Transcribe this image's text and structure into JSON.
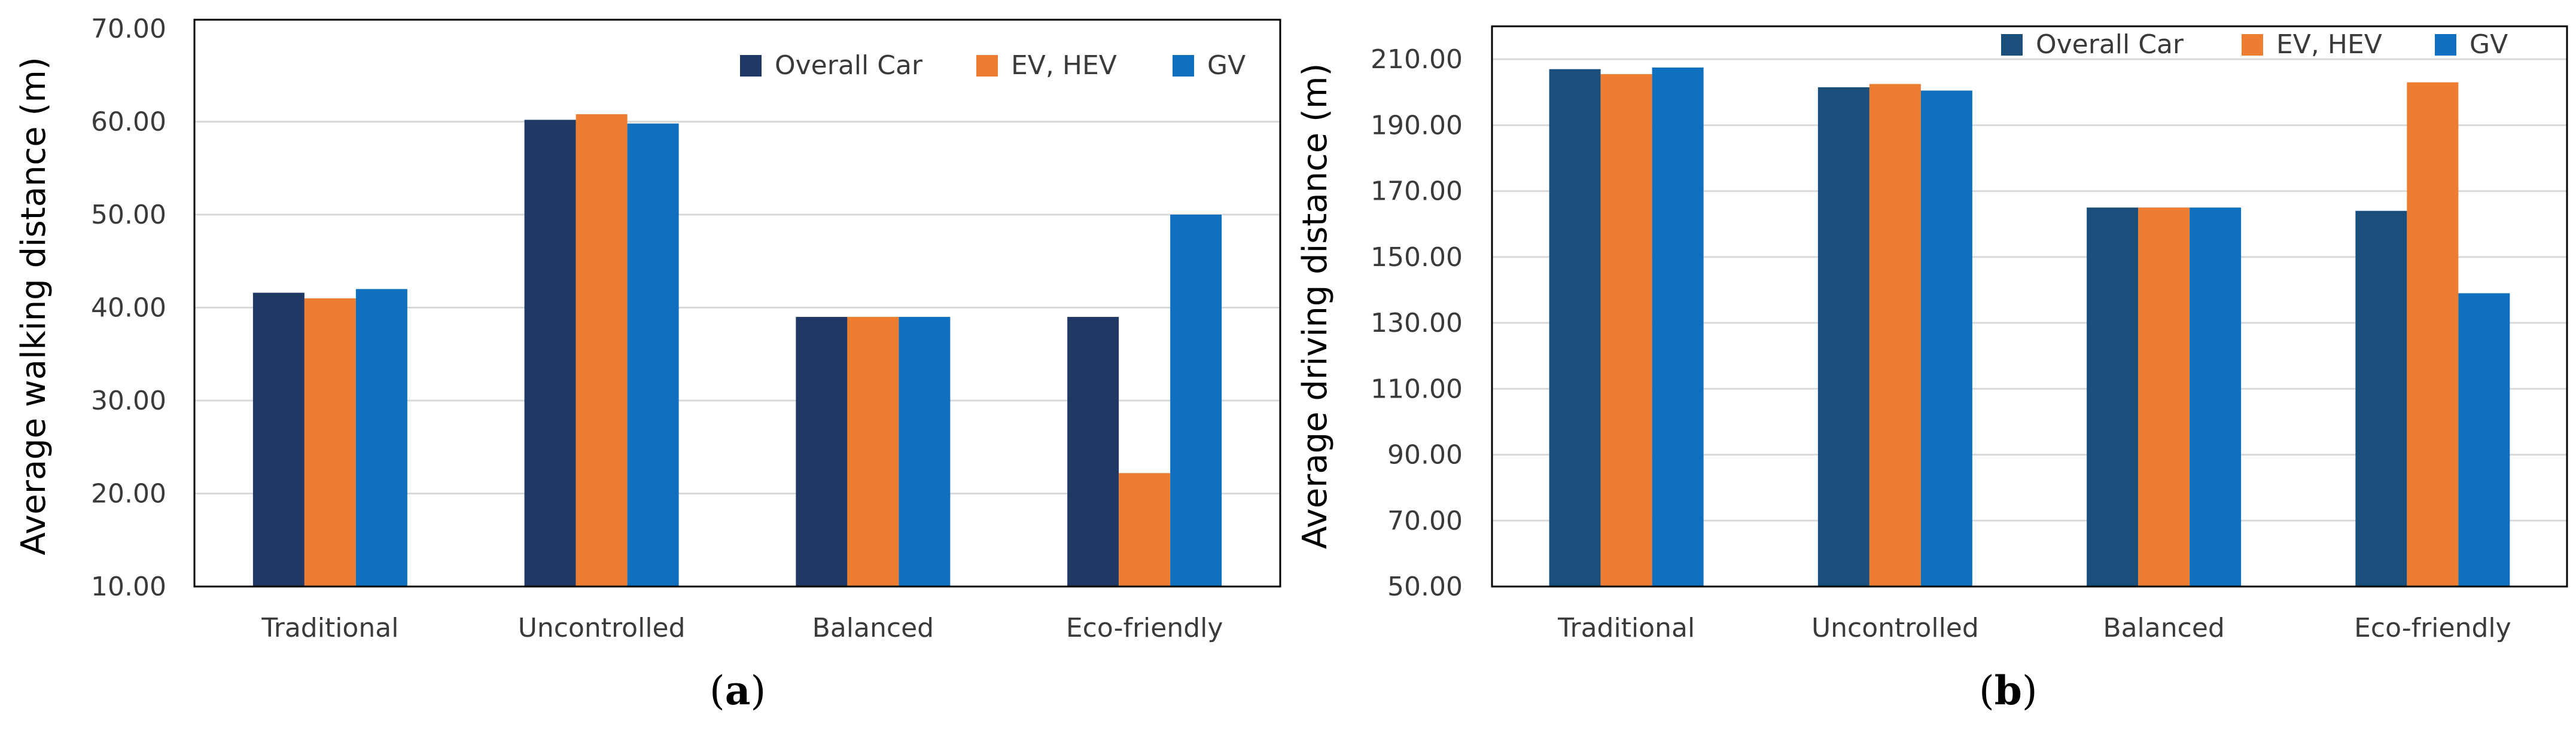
{
  "colors": {
    "panel_a": [
      "#1f3864",
      "#ed7d31",
      "#1070c0"
    ],
    "panel_b": [
      "#1a4f7c",
      "#ed7d31",
      "#1070c0"
    ],
    "gridline": "#d9d9d9",
    "frame": "#000000"
  },
  "chart_data": [
    {
      "type": "bar",
      "panel_label": "a",
      "caption_open": "(",
      "caption_close": ")",
      "title": "",
      "ylabel": "Average walking distance (m)",
      "xlabel": "",
      "ylim": [
        10,
        70
      ],
      "yticks": [
        10,
        20,
        30,
        40,
        50,
        60,
        70
      ],
      "ytick_labels": [
        "10.00",
        "20.00",
        "30.00",
        "40.00",
        "50.00",
        "60.00",
        "70.00"
      ],
      "categories": [
        "Traditional",
        "Uncontrolled",
        "Balanced",
        "Eco-friendly"
      ],
      "legend_position": "top-right",
      "grid": true,
      "series": [
        {
          "name": "Overall Car",
          "values": [
            41.6,
            60.2,
            39.0,
            39.0
          ]
        },
        {
          "name": "EV, HEV",
          "values": [
            41.0,
            60.8,
            39.0,
            22.2
          ]
        },
        {
          "name": "GV",
          "values": [
            42.0,
            59.8,
            39.0,
            50.0
          ]
        }
      ]
    },
    {
      "type": "bar",
      "panel_label": "b",
      "caption_open": "(",
      "caption_close": ")",
      "title": "",
      "ylabel": "Average driving distance (m)",
      "xlabel": "",
      "ylim": [
        50,
        220
      ],
      "yticks": [
        50,
        70,
        90,
        110,
        130,
        150,
        170,
        190,
        210
      ],
      "ytick_labels": [
        "50.00",
        "70.00",
        "90.00",
        "110.00",
        "130.00",
        "150.00",
        "170.00",
        "190.00",
        "210.00"
      ],
      "categories": [
        "Traditional",
        "Uncontrolled",
        "Balanced",
        "Eco-friendly"
      ],
      "legend_position": "top-right",
      "grid": true,
      "series": [
        {
          "name": "Overall Car",
          "values": [
            207.0,
            201.5,
            165.0,
            164.0
          ]
        },
        {
          "name": "EV, HEV",
          "values": [
            205.5,
            202.5,
            165.0,
            203.0
          ]
        },
        {
          "name": "GV",
          "values": [
            207.5,
            200.5,
            165.0,
            139.0
          ]
        }
      ]
    }
  ]
}
